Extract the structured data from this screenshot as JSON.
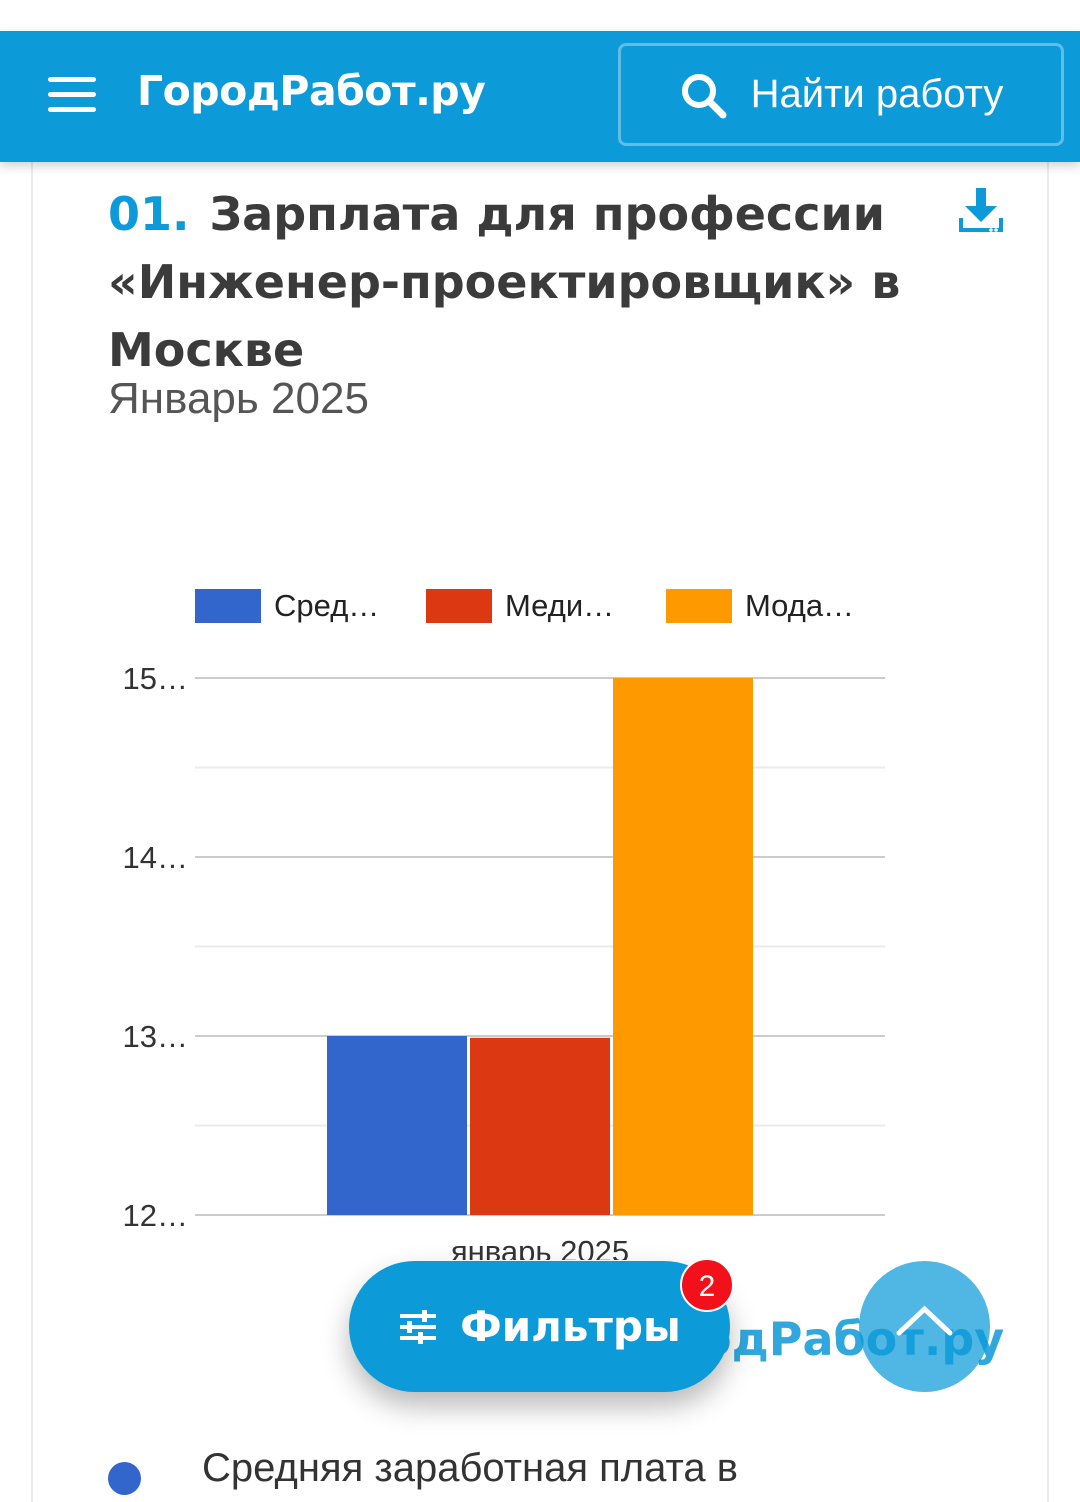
{
  "header": {
    "logo": "ГородРабот.ру",
    "search_label": "Найти работу"
  },
  "section": {
    "number": "01.",
    "title": "Зарплата для профессии «Инженер-проектировщик» в Москве",
    "subtitle": "Январь 2025"
  },
  "chart_data": {
    "type": "bar",
    "categories": [
      "январь 2025"
    ],
    "series": [
      {
        "name": "Сред…",
        "values": [
          130000
        ],
        "color": "#3366cc"
      },
      {
        "name": "Меди…",
        "values": [
          129900
        ],
        "color": "#dc3912"
      },
      {
        "name": "Мода…",
        "values": [
          150000
        ],
        "color": "#ff9900"
      }
    ],
    "y_tick_labels": [
      "15…",
      "14…",
      "13…",
      "12…"
    ],
    "ylim": [
      120000,
      150000
    ],
    "y_ticks": [
      120000,
      130000,
      140000,
      150000
    ],
    "grid": true,
    "legend_position": "top"
  },
  "filters": {
    "label": "Фильтры",
    "badge_count": "2"
  },
  "watermark": "одРабот.ру",
  "list": {
    "first_item": "Средняя заработная плата в"
  },
  "colors": {
    "brand": "#0c9ad9",
    "badge": "#f2101b"
  }
}
